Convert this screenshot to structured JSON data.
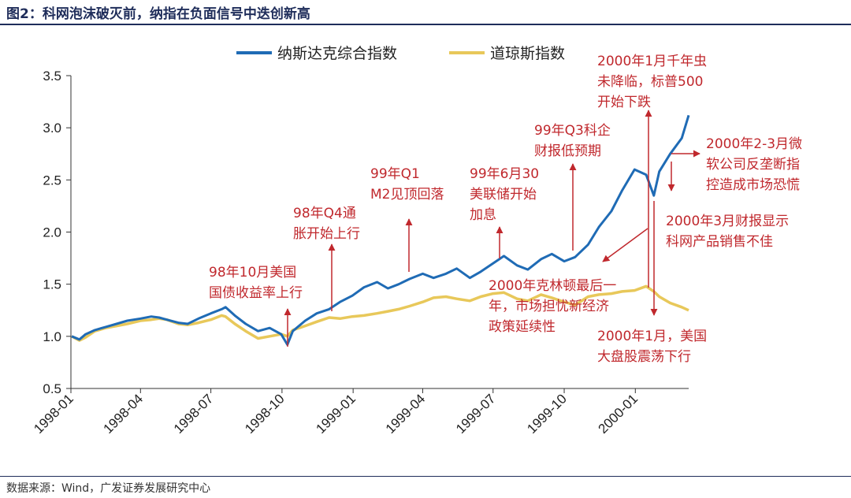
{
  "title": "图2：科网泡沫破灭前，纳指在负面信号中迭创新高",
  "source": "数据来源：Wind，广发证券发展研究中心",
  "colors": {
    "nasdaq": "#1f6bb5",
    "dow": "#e8c85a",
    "annotation": "#c0282d",
    "axis": "#333333"
  },
  "annotations": [
    {
      "id": "a1",
      "text": [
        "98年10月美国",
        "国债收益率上行"
      ]
    },
    {
      "id": "a2",
      "text": [
        "98年Q4通",
        "胀开始上行"
      ]
    },
    {
      "id": "a3",
      "text": [
        "99年Q1",
        "M2见顶回落"
      ]
    },
    {
      "id": "a4",
      "text": [
        "99年6月30",
        "美联储开始",
        "加息"
      ]
    },
    {
      "id": "a5",
      "text": [
        "99年Q3科企",
        "财报低预期"
      ]
    },
    {
      "id": "a6",
      "text": [
        "2000年克林顿最后一",
        "年，市场担忧新经济",
        "政策延续性"
      ]
    },
    {
      "id": "a7",
      "text": [
        "2000年1月千年虫",
        "未降临，标普500",
        "开始下跌"
      ]
    },
    {
      "id": "a8",
      "text": [
        "2000年2-3月微",
        "软公司反垄断指",
        "控造成市场恐慌"
      ]
    },
    {
      "id": "a9",
      "text": [
        "2000年3月财报显示",
        "科网产品销售不佳"
      ]
    },
    {
      "id": "a10",
      "text": [
        "2000年1月，美国",
        "大盘股震荡下行"
      ]
    }
  ],
  "chart_data": {
    "type": "line",
    "title": "",
    "xlabel": "",
    "ylabel": "",
    "ylim": [
      0.5,
      3.5
    ],
    "yticks": [
      "0.5",
      "1.0",
      "1.5",
      "2.0",
      "2.5",
      "3.0",
      "3.5"
    ],
    "xticks": [
      "1998-01",
      "1998-04",
      "1998-07",
      "1998-10",
      "1999-01",
      "1999-04",
      "1999-07",
      "1999-10",
      "2000-01"
    ],
    "legend": "top",
    "grid": false,
    "series": [
      {
        "name": "纳斯达克综合指数",
        "x": [
          "1998-01-02",
          "1998-01-12",
          "1998-01-20",
          "1998-02-01",
          "1998-02-15",
          "1998-03-01",
          "1998-03-15",
          "1998-04-01",
          "1998-04-15",
          "1998-04-25",
          "1998-05-05",
          "1998-05-20",
          "1998-06-01",
          "1998-06-15",
          "1998-07-01",
          "1998-07-15",
          "1998-07-20",
          "1998-08-01",
          "1998-08-15",
          "1998-08-31",
          "1998-09-15",
          "1998-09-30",
          "1998-10-08",
          "1998-10-15",
          "1998-10-31",
          "1998-11-15",
          "1998-12-01",
          "1998-12-15",
          "1998-12-31",
          "1999-01-15",
          "1999-02-01",
          "1999-02-15",
          "1999-03-01",
          "1999-03-15",
          "1999-04-01",
          "1999-04-15",
          "1999-05-01",
          "1999-05-15",
          "1999-06-01",
          "1999-06-15",
          "1999-07-01",
          "1999-07-15",
          "1999-08-01",
          "1999-08-15",
          "1999-09-01",
          "1999-09-15",
          "1999-10-01",
          "1999-10-15",
          "1999-11-01",
          "1999-11-15",
          "1999-12-01",
          "1999-12-15",
          "1999-12-31",
          "2000-01-15",
          "2000-01-25",
          "2000-02-01",
          "2000-02-15",
          "2000-03-01",
          "2000-03-10"
        ],
        "values": [
          1.0,
          0.97,
          1.02,
          1.06,
          1.09,
          1.12,
          1.15,
          1.17,
          1.19,
          1.18,
          1.16,
          1.13,
          1.12,
          1.17,
          1.22,
          1.26,
          1.28,
          1.2,
          1.12,
          1.05,
          1.08,
          1.02,
          0.92,
          1.05,
          1.15,
          1.22,
          1.26,
          1.33,
          1.39,
          1.47,
          1.52,
          1.46,
          1.5,
          1.55,
          1.6,
          1.56,
          1.6,
          1.65,
          1.56,
          1.62,
          1.7,
          1.77,
          1.68,
          1.64,
          1.74,
          1.79,
          1.72,
          1.76,
          1.88,
          2.05,
          2.2,
          2.4,
          2.6,
          2.55,
          2.35,
          2.58,
          2.75,
          2.9,
          3.12
        ]
      },
      {
        "name": "道琼斯指数",
        "x": [
          "1998-01-02",
          "1998-01-12",
          "1998-01-20",
          "1998-02-01",
          "1998-02-15",
          "1998-03-01",
          "1998-03-15",
          "1998-04-01",
          "1998-04-15",
          "1998-04-25",
          "1998-05-05",
          "1998-05-20",
          "1998-06-01",
          "1998-06-15",
          "1998-07-01",
          "1998-07-15",
          "1998-07-20",
          "1998-08-01",
          "1998-08-15",
          "1998-08-31",
          "1998-09-15",
          "1998-09-30",
          "1998-10-08",
          "1998-10-15",
          "1998-10-31",
          "1998-11-15",
          "1998-12-01",
          "1998-12-15",
          "1998-12-31",
          "1999-01-15",
          "1999-02-01",
          "1999-02-15",
          "1999-03-01",
          "1999-03-15",
          "1999-04-01",
          "1999-04-15",
          "1999-05-01",
          "1999-05-15",
          "1999-06-01",
          "1999-06-15",
          "1999-07-01",
          "1999-07-15",
          "1999-08-01",
          "1999-08-15",
          "1999-09-01",
          "1999-09-15",
          "1999-10-01",
          "1999-10-15",
          "1999-11-01",
          "1999-11-15",
          "1999-12-01",
          "1999-12-15",
          "1999-12-31",
          "2000-01-15",
          "2000-01-25",
          "2000-02-01",
          "2000-02-15",
          "2000-03-01",
          "2000-03-10"
        ],
        "values": [
          1.0,
          0.96,
          0.99,
          1.05,
          1.08,
          1.1,
          1.12,
          1.15,
          1.16,
          1.17,
          1.16,
          1.12,
          1.11,
          1.13,
          1.16,
          1.2,
          1.19,
          1.12,
          1.05,
          0.98,
          1.0,
          1.02,
          1.0,
          1.06,
          1.1,
          1.14,
          1.18,
          1.17,
          1.19,
          1.2,
          1.22,
          1.24,
          1.26,
          1.29,
          1.33,
          1.37,
          1.38,
          1.36,
          1.34,
          1.38,
          1.41,
          1.42,
          1.36,
          1.34,
          1.4,
          1.37,
          1.33,
          1.3,
          1.38,
          1.4,
          1.41,
          1.43,
          1.44,
          1.48,
          1.43,
          1.38,
          1.32,
          1.28,
          1.25
        ]
      }
    ]
  }
}
